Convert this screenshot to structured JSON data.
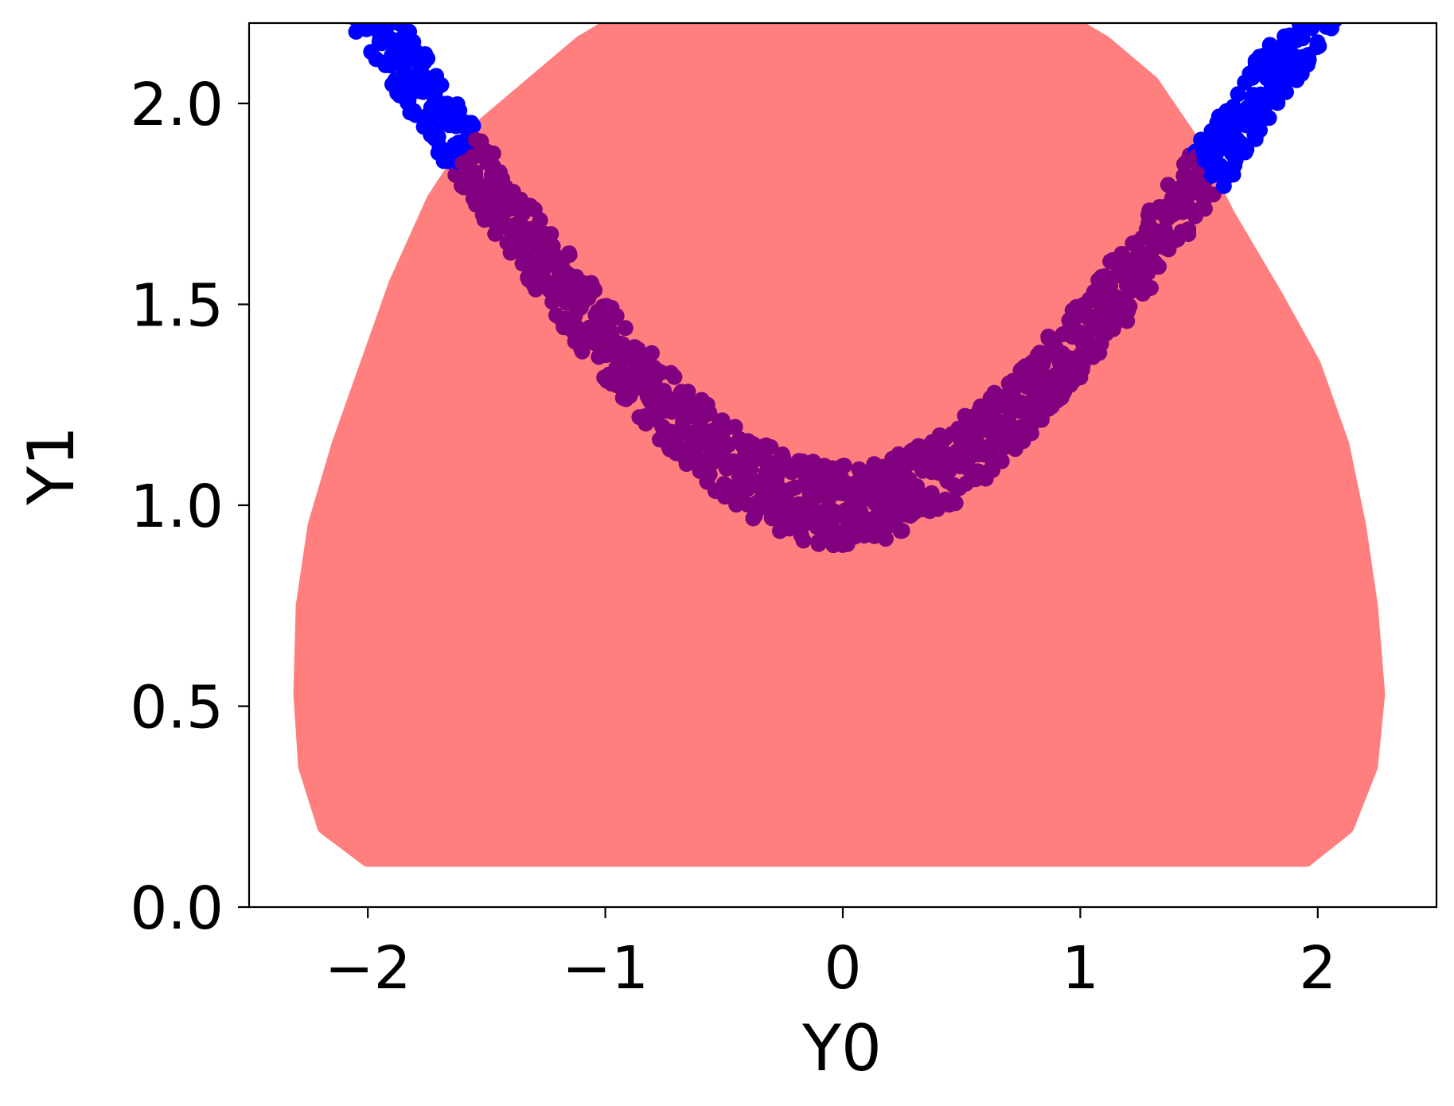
{
  "chart_data": {
    "type": "scatter",
    "title": "",
    "xlabel": "Y0",
    "ylabel": "Y1",
    "xlim": [
      -2.5,
      2.5
    ],
    "ylim": [
      0.0,
      2.2
    ],
    "xticks": [
      -2,
      -1,
      0,
      1,
      2
    ],
    "xtick_labels": [
      "−2",
      "−1",
      "0",
      "1",
      "2"
    ],
    "yticks": [
      0.0,
      0.5,
      1.0,
      1.5,
      2.0
    ],
    "ytick_labels": [
      "0.0",
      "0.5",
      "1.0",
      "1.5",
      "2.0"
    ],
    "grid": false,
    "legend": "none",
    "series": [
      {
        "kind": "filled-region",
        "color": "#ff7f7f",
        "boundary": [
          [
            -2.28,
            0.53
          ],
          [
            -2.27,
            0.75
          ],
          [
            -2.22,
            0.95
          ],
          [
            -2.12,
            1.15
          ],
          [
            -2.0,
            1.35
          ],
          [
            -1.88,
            1.55
          ],
          [
            -1.72,
            1.76
          ],
          [
            -1.52,
            1.94
          ],
          [
            -1.3,
            2.05
          ],
          [
            -1.1,
            2.15
          ],
          [
            -0.9,
            2.22
          ],
          [
            0.9,
            2.22
          ],
          [
            1.1,
            2.15
          ],
          [
            1.3,
            2.05
          ],
          [
            1.45,
            1.92
          ],
          [
            1.62,
            1.72
          ],
          [
            1.82,
            1.52
          ],
          [
            1.98,
            1.35
          ],
          [
            2.1,
            1.15
          ],
          [
            2.17,
            0.95
          ],
          [
            2.22,
            0.75
          ],
          [
            2.25,
            0.53
          ],
          [
            2.22,
            0.35
          ],
          [
            2.12,
            0.2
          ],
          [
            1.95,
            0.12
          ],
          [
            -2.0,
            0.12
          ],
          [
            -2.18,
            0.2
          ],
          [
            -2.26,
            0.35
          ]
        ]
      },
      {
        "kind": "points",
        "color": "#0000ff",
        "overlap_color": "#800080",
        "curve": "y = sqrt(1 + x^2)",
        "x_range": [
          -2.2,
          2.2
        ],
        "band_width": 0.12
      }
    ]
  }
}
